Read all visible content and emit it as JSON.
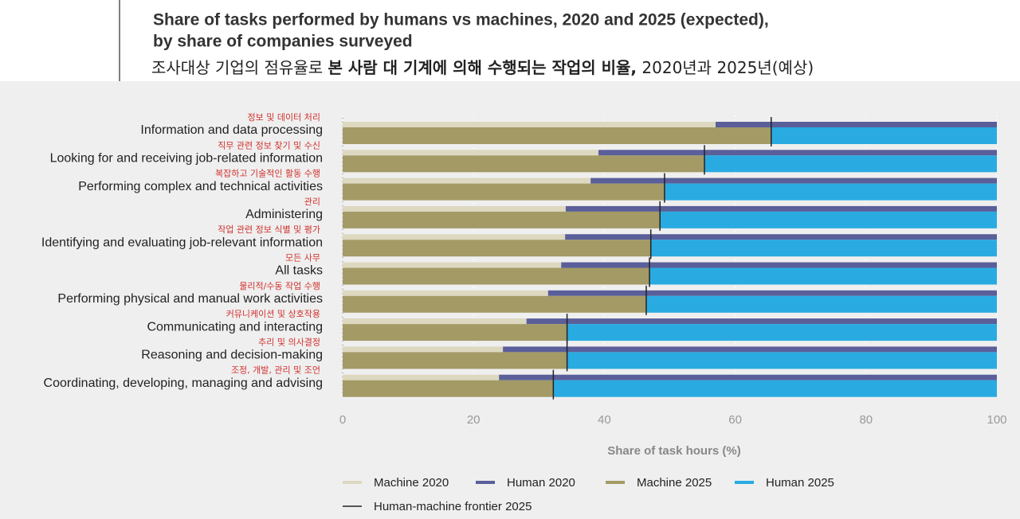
{
  "chart_data": {
    "type": "bar",
    "title_lines": [
      "Share of tasks performed by humans vs machines, 2020 and 2025 (expected),",
      "by share of companies surveyed"
    ],
    "title_ko_parts": [
      "조사대상 기업의 점유율로 ",
      "본 사람 대 기계에 의해 수행되는 작업의 비율,",
      " 2020년과 2025년(예상)"
    ],
    "categories": [
      "Information and data processing",
      "Looking for and receiving job-related information",
      "Performing complex and technical activities",
      "Administering",
      "Identifying and evaluating job-relevant information",
      "All tasks",
      "Performing physical and manual work activities",
      "Communicating and interacting",
      "Reasoning and decision-making",
      "Coordinating, developing, managing and advising"
    ],
    "categories_ko": [
      "정보 및 데이터 처리",
      "직무 관련 정보 찾기 및 수신",
      "복잡하고 기술적인 활동 수행",
      "관리",
      "작업 관련 정보 식별 및 평가",
      "모든 사무",
      "물리적/수동 작업 수행",
      "커뮤니케이션 및 상호작용",
      "추리 및 의사결정",
      "조정, 개발, 관리 및 조언"
    ],
    "series": [
      {
        "name": "Machine 2020",
        "color": "#ddd8c0",
        "values": [
          57.0,
          39.1,
          37.9,
          34.1,
          34.0,
          33.4,
          31.4,
          28.1,
          24.5,
          23.9
        ]
      },
      {
        "name": "Human 2020",
        "color": "#5a5f9a",
        "values": [
          43.0,
          60.9,
          62.1,
          65.9,
          66.0,
          66.6,
          68.6,
          71.9,
          75.5,
          76.1
        ]
      },
      {
        "name": "Machine 2025",
        "color": "#a39a66",
        "values": [
          65.5,
          55.3,
          49.2,
          48.5,
          47.1,
          46.9,
          46.4,
          34.3,
          34.3,
          32.2
        ]
      },
      {
        "name": "Human 2025",
        "color": "#29abe2",
        "values": [
          34.5,
          44.7,
          50.8,
          51.5,
          52.9,
          53.1,
          53.6,
          65.7,
          65.7,
          67.8
        ]
      }
    ],
    "frontier": {
      "name": "Human-machine frontier 2025",
      "color": "#222222"
    },
    "xlabel": "Share of task hours (%)",
    "xlim": [
      0,
      100
    ],
    "xticks": [
      0,
      20,
      40,
      60,
      80,
      100
    ],
    "grid": true
  }
}
